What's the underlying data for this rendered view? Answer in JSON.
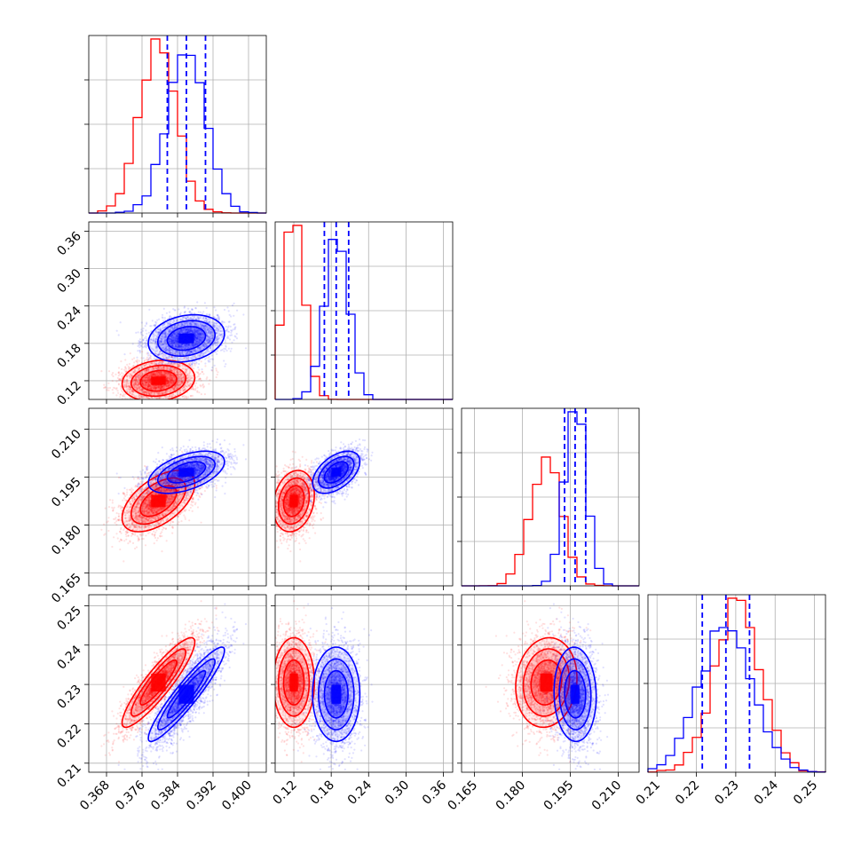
{
  "colors": {
    "red": "#ff0000",
    "blue": "#0000ff",
    "grid": "#b0b0b0",
    "axis": "#000000"
  },
  "chart_data": {
    "type": "corner",
    "title": "",
    "grid": true,
    "parameters": [
      {
        "range": [
          0.364,
          0.404
        ],
        "ticks": [
          "0.368",
          "0.376",
          "0.384",
          "0.392",
          "0.400"
        ]
      },
      {
        "range": [
          0.09,
          0.375
        ],
        "ticks": [
          "0.12",
          "0.18",
          "0.24",
          "0.30",
          "0.36"
        ]
      },
      {
        "range": [
          0.161,
          0.2165
        ],
        "ticks": [
          "0.165",
          "0.180",
          "0.195",
          "0.210"
        ]
      },
      {
        "range": [
          0.2077,
          0.2528
        ],
        "ticks": [
          "0.21",
          "0.22",
          "0.23",
          "0.24",
          "0.25"
        ]
      }
    ],
    "series": [
      {
        "color": "red",
        "mean": [
          0.3797,
          0.12,
          0.1875,
          0.2305
        ],
        "sd": [
          0.0041,
          0.0165,
          0.0048,
          0.0057
        ],
        "corr": [
          [
            1,
            0.15,
            0.55,
            0.9
          ],
          [
            0.15,
            1,
            0.2,
            0.0
          ],
          [
            0.55,
            0.2,
            1,
            0.1
          ],
          [
            0.9,
            0.0,
            0.1,
            1
          ]
        ]
      },
      {
        "color": "blue",
        "mean": [
          0.386,
          0.188,
          0.1965,
          0.2275
        ],
        "sd": [
          0.0043,
          0.019,
          0.0033,
          0.006
        ],
        "corr": [
          [
            1,
            0.2,
            0.5,
            0.93
          ],
          [
            0.2,
            1,
            0.5,
            0.0
          ],
          [
            0.5,
            0.5,
            1,
            -0.05
          ],
          [
            0.93,
            0.0,
            -0.05,
            1
          ]
        ]
      }
    ],
    "quantile_lines": [
      [
        0.3817,
        0.386,
        0.3903
      ],
      [
        0.169,
        0.188,
        0.208
      ],
      [
        0.1932,
        0.1965,
        0.1998
      ],
      [
        0.2215,
        0.2275,
        0.2335
      ]
    ]
  }
}
